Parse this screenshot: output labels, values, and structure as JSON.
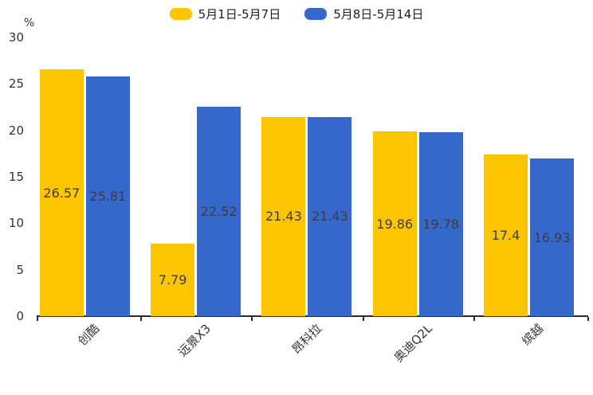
{
  "chart_data": {
    "type": "bar",
    "title": "",
    "unit_label": "%",
    "xlabel": "",
    "ylabel": "%",
    "categories": [
      "创酷",
      "远景X3",
      "昂科拉",
      "奥迪Q2L",
      "缤越"
    ],
    "series": [
      {
        "name": "5月1日-5月7日",
        "color": "#FDC500",
        "values": [
          26.57,
          7.79,
          21.43,
          19.86,
          17.4
        ]
      },
      {
        "name": "5月8日-5月14日",
        "color": "#3667CB",
        "values": [
          25.81,
          22.52,
          21.43,
          19.78,
          16.93
        ]
      }
    ],
    "ylim": [
      0,
      30
    ],
    "yticks": [
      0,
      5,
      10,
      15,
      20,
      25,
      30
    ],
    "grid": false,
    "legend_position": "top-center",
    "value_labels": "inside-center",
    "value_label_color": "#3d3d3d",
    "axis_color": "#2b2b2b",
    "x_tick_label_rotation_deg": -45
  }
}
